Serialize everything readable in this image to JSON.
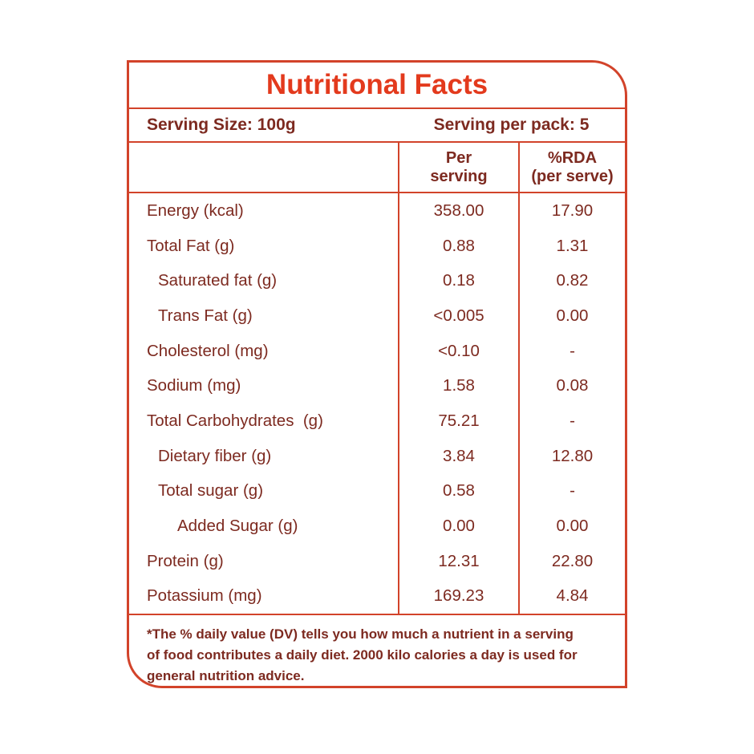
{
  "label": {
    "title": "Nutritional Facts",
    "serving_size": "Serving Size: 100g",
    "serving_per_pack": "Serving per pack: 5",
    "columns": {
      "per_serving_line1": "Per",
      "per_serving_line2": "serving",
      "rda_line1": "%RDA",
      "rda_line2": "(per serve)"
    },
    "rows": [
      {
        "label": "Energy (kcal)",
        "per_serving": "358.00",
        "rda": "17.90"
      },
      {
        "label": "Total Fat (g)",
        "per_serving": "0.88",
        "rda": "1.31"
      },
      {
        "label": "Saturated fat (g)",
        "per_serving": "0.18",
        "rda": "0.82"
      },
      {
        "label": "Trans Fat (g)",
        "per_serving": "<0.005",
        "rda": "0.00"
      },
      {
        "label": "Cholesterol (mg)",
        "per_serving": "<0.10",
        "rda": "-"
      },
      {
        "label": "Sodium (mg)",
        "per_serving": "1.58",
        "rda": "0.08"
      },
      {
        "label": "Total Carbohydrates  (g)",
        "per_serving": "75.21",
        "rda": "-"
      },
      {
        "label": "Dietary fiber (g)",
        "per_serving": "3.84",
        "rda": "12.80"
      },
      {
        "label": "Total sugar (g)",
        "per_serving": "0.58",
        "rda": "-"
      },
      {
        "label": "Added Sugar (g)",
        "per_serving": "0.00",
        "rda": "0.00"
      },
      {
        "label": "Protein (g)",
        "per_serving": "12.31",
        "rda": "22.80"
      },
      {
        "label": "Potassium (mg)",
        "per_serving": "169.23",
        "rda": "4.84"
      }
    ],
    "footnote": {
      "lines": [
        "*The % daily value (DV) tells you how much a nutrient in a serving",
        "of food contributes a daily diet. 2000 kilo calories a day is used for",
        "general nutrition advice."
      ]
    },
    "colors": {
      "border": "#d2432a",
      "title": "#e33a1d",
      "text": "#7d2a20"
    }
  }
}
